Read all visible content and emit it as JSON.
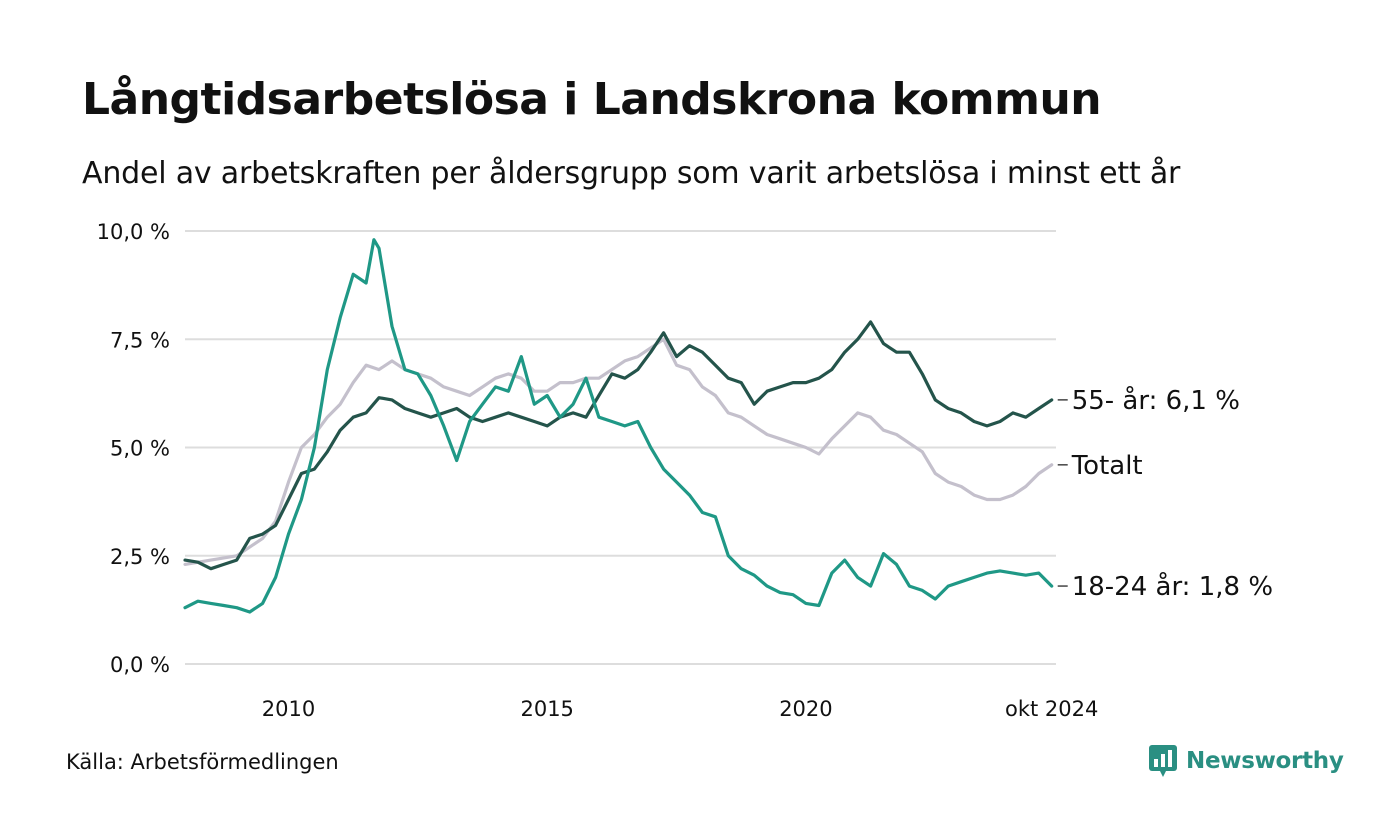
{
  "header": {
    "title": "Långtidsarbetslösa i Landskrona kommun",
    "subtitle": "Andel av arbetskraften per åldersgrupp som varit arbetslösa i minst ett år"
  },
  "footer": {
    "source": "Källa: Arbetsförmedlingen",
    "brand": "Newsworthy"
  },
  "colors": {
    "age55": "#24544b",
    "total": "#c4c0cc",
    "age1824": "#1f9886",
    "grid": "#dddddd",
    "brand": "#2a8f82"
  },
  "chart_data": {
    "type": "line",
    "ylim": [
      0,
      10
    ],
    "xlim": [
      2008.0,
      2024.833
    ],
    "ytick_values": [
      0,
      2.5,
      5,
      7.5,
      10
    ],
    "ytick_labels": [
      "0,0 %",
      "2,5 %",
      "5,0 %",
      "7,5 %",
      "10,0 %"
    ],
    "xtick_values": [
      2010,
      2015,
      2020,
      2024.75
    ],
    "xtick_labels": [
      "2010",
      "2015",
      "2020",
      "okt 2024"
    ],
    "grid": "horizontal",
    "series": [
      {
        "key": "total",
        "label": "Totalt",
        "points": [
          [
            2008.0,
            2.3
          ],
          [
            2008.5,
            2.4
          ],
          [
            2009.0,
            2.5
          ],
          [
            2009.5,
            2.9
          ],
          [
            2009.75,
            3.3
          ],
          [
            2010.0,
            4.2
          ],
          [
            2010.25,
            5.0
          ],
          [
            2010.5,
            5.3
          ],
          [
            2010.75,
            5.7
          ],
          [
            2011.0,
            6.0
          ],
          [
            2011.25,
            6.5
          ],
          [
            2011.5,
            6.9
          ],
          [
            2011.75,
            6.8
          ],
          [
            2012.0,
            7.0
          ],
          [
            2012.25,
            6.8
          ],
          [
            2012.5,
            6.7
          ],
          [
            2012.75,
            6.6
          ],
          [
            2013.0,
            6.4
          ],
          [
            2013.25,
            6.3
          ],
          [
            2013.5,
            6.2
          ],
          [
            2013.75,
            6.4
          ],
          [
            2014.0,
            6.6
          ],
          [
            2014.25,
            6.7
          ],
          [
            2014.5,
            6.6
          ],
          [
            2014.75,
            6.3
          ],
          [
            2015.0,
            6.3
          ],
          [
            2015.25,
            6.5
          ],
          [
            2015.5,
            6.5
          ],
          [
            2015.75,
            6.6
          ],
          [
            2016.0,
            6.6
          ],
          [
            2016.25,
            6.8
          ],
          [
            2016.5,
            7.0
          ],
          [
            2016.75,
            7.1
          ],
          [
            2017.0,
            7.3
          ],
          [
            2017.25,
            7.5
          ],
          [
            2017.5,
            6.9
          ],
          [
            2017.75,
            6.8
          ],
          [
            2018.0,
            6.4
          ],
          [
            2018.25,
            6.2
          ],
          [
            2018.5,
            5.8
          ],
          [
            2018.75,
            5.7
          ],
          [
            2019.0,
            5.5
          ],
          [
            2019.25,
            5.3
          ],
          [
            2019.5,
            5.2
          ],
          [
            2019.75,
            5.1
          ],
          [
            2020.0,
            5.0
          ],
          [
            2020.25,
            4.85
          ],
          [
            2020.5,
            5.2
          ],
          [
            2020.75,
            5.5
          ],
          [
            2021.0,
            5.8
          ],
          [
            2021.25,
            5.7
          ],
          [
            2021.5,
            5.4
          ],
          [
            2021.75,
            5.3
          ],
          [
            2022.0,
            5.1
          ],
          [
            2022.25,
            4.9
          ],
          [
            2022.5,
            4.4
          ],
          [
            2022.75,
            4.2
          ],
          [
            2023.0,
            4.1
          ],
          [
            2023.25,
            3.9
          ],
          [
            2023.5,
            3.8
          ],
          [
            2023.75,
            3.8
          ],
          [
            2024.0,
            3.9
          ],
          [
            2024.25,
            4.1
          ],
          [
            2024.5,
            4.4
          ],
          [
            2024.75,
            4.6
          ]
        ]
      },
      {
        "key": "age55",
        "label": "55- år: 6,1 %",
        "points": [
          [
            2008.0,
            2.4
          ],
          [
            2008.25,
            2.35
          ],
          [
            2008.5,
            2.2
          ],
          [
            2008.75,
            2.3
          ],
          [
            2009.0,
            2.4
          ],
          [
            2009.25,
            2.9
          ],
          [
            2009.5,
            3.0
          ],
          [
            2009.75,
            3.2
          ],
          [
            2010.0,
            3.8
          ],
          [
            2010.25,
            4.4
          ],
          [
            2010.5,
            4.5
          ],
          [
            2010.75,
            4.9
          ],
          [
            2011.0,
            5.4
          ],
          [
            2011.25,
            5.7
          ],
          [
            2011.5,
            5.8
          ],
          [
            2011.75,
            6.15
          ],
          [
            2012.0,
            6.1
          ],
          [
            2012.25,
            5.9
          ],
          [
            2012.5,
            5.8
          ],
          [
            2012.75,
            5.7
          ],
          [
            2013.0,
            5.8
          ],
          [
            2013.25,
            5.9
          ],
          [
            2013.5,
            5.7
          ],
          [
            2013.75,
            5.6
          ],
          [
            2014.0,
            5.7
          ],
          [
            2014.25,
            5.8
          ],
          [
            2014.5,
            5.7
          ],
          [
            2014.75,
            5.6
          ],
          [
            2015.0,
            5.5
          ],
          [
            2015.25,
            5.7
          ],
          [
            2015.5,
            5.8
          ],
          [
            2015.75,
            5.7
          ],
          [
            2016.0,
            6.2
          ],
          [
            2016.25,
            6.7
          ],
          [
            2016.5,
            6.6
          ],
          [
            2016.75,
            6.8
          ],
          [
            2017.0,
            7.2
          ],
          [
            2017.25,
            7.65
          ],
          [
            2017.5,
            7.1
          ],
          [
            2017.75,
            7.35
          ],
          [
            2018.0,
            7.2
          ],
          [
            2018.25,
            6.9
          ],
          [
            2018.5,
            6.6
          ],
          [
            2018.75,
            6.5
          ],
          [
            2019.0,
            6.0
          ],
          [
            2019.25,
            6.3
          ],
          [
            2019.5,
            6.4
          ],
          [
            2019.75,
            6.5
          ],
          [
            2020.0,
            6.5
          ],
          [
            2020.25,
            6.6
          ],
          [
            2020.5,
            6.8
          ],
          [
            2020.75,
            7.2
          ],
          [
            2021.0,
            7.5
          ],
          [
            2021.25,
            7.9
          ],
          [
            2021.5,
            7.4
          ],
          [
            2021.75,
            7.2
          ],
          [
            2022.0,
            7.2
          ],
          [
            2022.25,
            6.7
          ],
          [
            2022.5,
            6.1
          ],
          [
            2022.75,
            5.9
          ],
          [
            2023.0,
            5.8
          ],
          [
            2023.25,
            5.6
          ],
          [
            2023.5,
            5.5
          ],
          [
            2023.75,
            5.6
          ],
          [
            2024.0,
            5.8
          ],
          [
            2024.25,
            5.7
          ],
          [
            2024.5,
            5.9
          ],
          [
            2024.75,
            6.1
          ]
        ]
      },
      {
        "key": "age1824",
        "label": "18-24 år: 1,8 %",
        "points": [
          [
            2008.0,
            1.3
          ],
          [
            2008.25,
            1.45
          ],
          [
            2008.5,
            1.4
          ],
          [
            2008.75,
            1.35
          ],
          [
            2009.0,
            1.3
          ],
          [
            2009.25,
            1.2
          ],
          [
            2009.5,
            1.4
          ],
          [
            2009.75,
            2.0
          ],
          [
            2010.0,
            3.0
          ],
          [
            2010.25,
            3.8
          ],
          [
            2010.5,
            5.0
          ],
          [
            2010.75,
            6.8
          ],
          [
            2011.0,
            8.0
          ],
          [
            2011.25,
            9.0
          ],
          [
            2011.5,
            8.8
          ],
          [
            2011.65,
            9.8
          ],
          [
            2011.75,
            9.6
          ],
          [
            2012.0,
            7.8
          ],
          [
            2012.25,
            6.8
          ],
          [
            2012.5,
            6.7
          ],
          [
            2012.75,
            6.2
          ],
          [
            2013.0,
            5.5
          ],
          [
            2013.25,
            4.7
          ],
          [
            2013.5,
            5.6
          ],
          [
            2013.75,
            6.0
          ],
          [
            2014.0,
            6.4
          ],
          [
            2014.25,
            6.3
          ],
          [
            2014.5,
            7.1
          ],
          [
            2014.75,
            6.0
          ],
          [
            2015.0,
            6.2
          ],
          [
            2015.25,
            5.7
          ],
          [
            2015.5,
            6.0
          ],
          [
            2015.75,
            6.6
          ],
          [
            2016.0,
            5.7
          ],
          [
            2016.25,
            5.6
          ],
          [
            2016.5,
            5.5
          ],
          [
            2016.75,
            5.6
          ],
          [
            2017.0,
            5.0
          ],
          [
            2017.25,
            4.5
          ],
          [
            2017.5,
            4.2
          ],
          [
            2017.75,
            3.9
          ],
          [
            2018.0,
            3.5
          ],
          [
            2018.25,
            3.4
          ],
          [
            2018.5,
            2.5
          ],
          [
            2018.75,
            2.2
          ],
          [
            2019.0,
            2.05
          ],
          [
            2019.25,
            1.8
          ],
          [
            2019.5,
            1.65
          ],
          [
            2019.75,
            1.6
          ],
          [
            2020.0,
            1.4
          ],
          [
            2020.25,
            1.35
          ],
          [
            2020.5,
            2.1
          ],
          [
            2020.75,
            2.4
          ],
          [
            2021.0,
            2.0
          ],
          [
            2021.25,
            1.8
          ],
          [
            2021.5,
            2.55
          ],
          [
            2021.75,
            2.3
          ],
          [
            2022.0,
            1.8
          ],
          [
            2022.25,
            1.7
          ],
          [
            2022.5,
            1.5
          ],
          [
            2022.75,
            1.8
          ],
          [
            2023.0,
            1.9
          ],
          [
            2023.25,
            2.0
          ],
          [
            2023.5,
            2.1
          ],
          [
            2023.75,
            2.15
          ],
          [
            2024.0,
            2.1
          ],
          [
            2024.25,
            2.05
          ],
          [
            2024.5,
            2.1
          ],
          [
            2024.75,
            1.8
          ]
        ]
      }
    ]
  }
}
